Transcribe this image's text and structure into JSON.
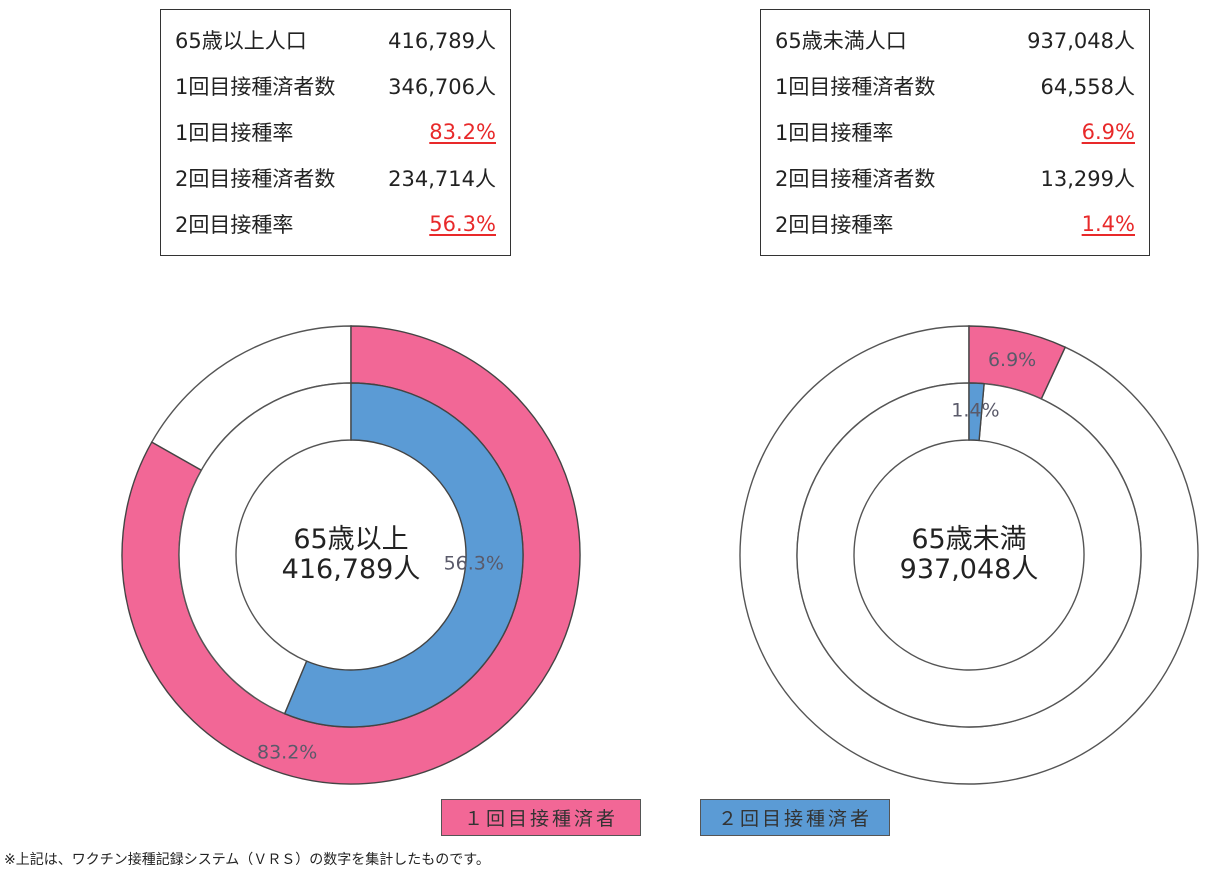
{
  "boxes": {
    "left": [
      {
        "label": "65歳以上人口",
        "value": "416,789人",
        "rate": false
      },
      {
        "label": "1回目接種済者数",
        "value": "346,706人",
        "rate": false
      },
      {
        "label": "1回目接種率",
        "value": "83.2%",
        "rate": true
      },
      {
        "label": "2回目接種済者数",
        "value": "234,714人",
        "rate": false
      },
      {
        "label": "2回目接種率",
        "value": "56.3%",
        "rate": true
      }
    ],
    "right": [
      {
        "label": "65歳未満人口",
        "value": "937,048人",
        "rate": false
      },
      {
        "label": "1回目接種済者数",
        "value": "64,558人",
        "rate": false
      },
      {
        "label": "1回目接種率",
        "value": "6.9%",
        "rate": true
      },
      {
        "label": "2回目接種済者数",
        "value": "13,299人",
        "rate": false
      },
      {
        "label": "2回目接種率",
        "value": "1.4%",
        "rate": true
      }
    ]
  },
  "legend": {
    "first": "１回目接種済者",
    "second": "２回目接種済者"
  },
  "footnote": "※上記は、ワクチン接種記録システム（ＶＲＳ）の数字を集計したものです。",
  "colors": {
    "first_dose": "#f26796",
    "second_dose": "#5b9bd5",
    "rate_text": "#e8292a"
  },
  "chart_data": [
    {
      "type": "pie",
      "center_label": [
        "65歳以上",
        "416,789人"
      ],
      "series": [
        {
          "name": "１回目接種済者",
          "value": 83.2,
          "label": "83.2%"
        },
        {
          "name": "２回目接種済者",
          "value": 56.3,
          "label": "56.3%"
        }
      ]
    },
    {
      "type": "pie",
      "center_label": [
        "65歳未満",
        "937,048人"
      ],
      "series": [
        {
          "name": "１回目接種済者",
          "value": 6.9,
          "label": "6.9%"
        },
        {
          "name": "２回目接種済者",
          "value": 1.4,
          "label": "1.4%"
        }
      ]
    }
  ]
}
